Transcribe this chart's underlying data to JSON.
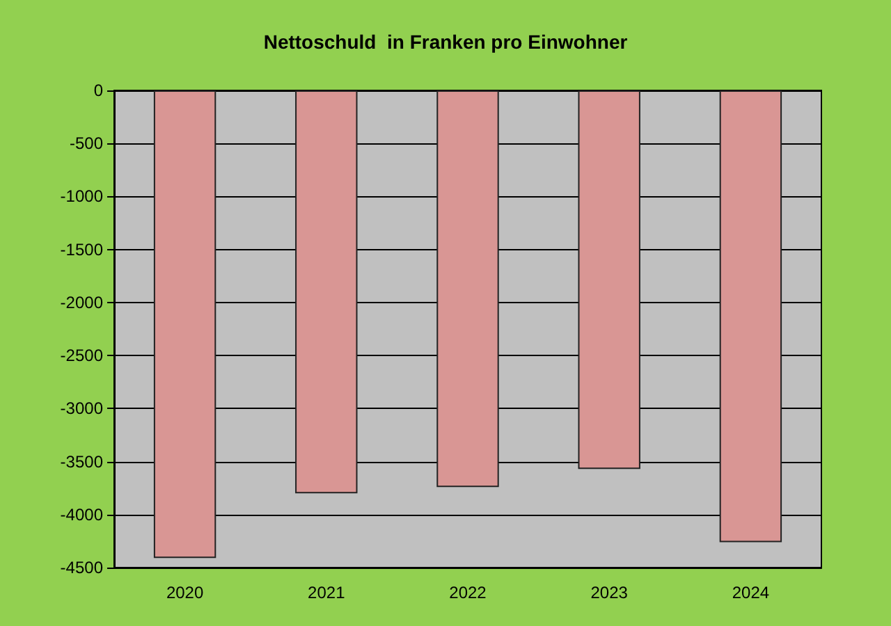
{
  "chart_data": {
    "type": "bar",
    "title": "Nettoschuld  in Franken pro Einwohner",
    "categories": [
      "2020",
      "2021",
      "2022",
      "2023",
      "2024"
    ],
    "values": [
      -4410,
      -3800,
      -3740,
      -3570,
      -4260
    ],
    "color": "#d99694",
    "ylim": [
      -4500,
      0
    ],
    "yticks": [
      0,
      -500,
      -1000,
      -1500,
      -2000,
      -2500,
      -3000,
      -3500,
      -4000,
      -4500
    ],
    "grid": "y"
  }
}
